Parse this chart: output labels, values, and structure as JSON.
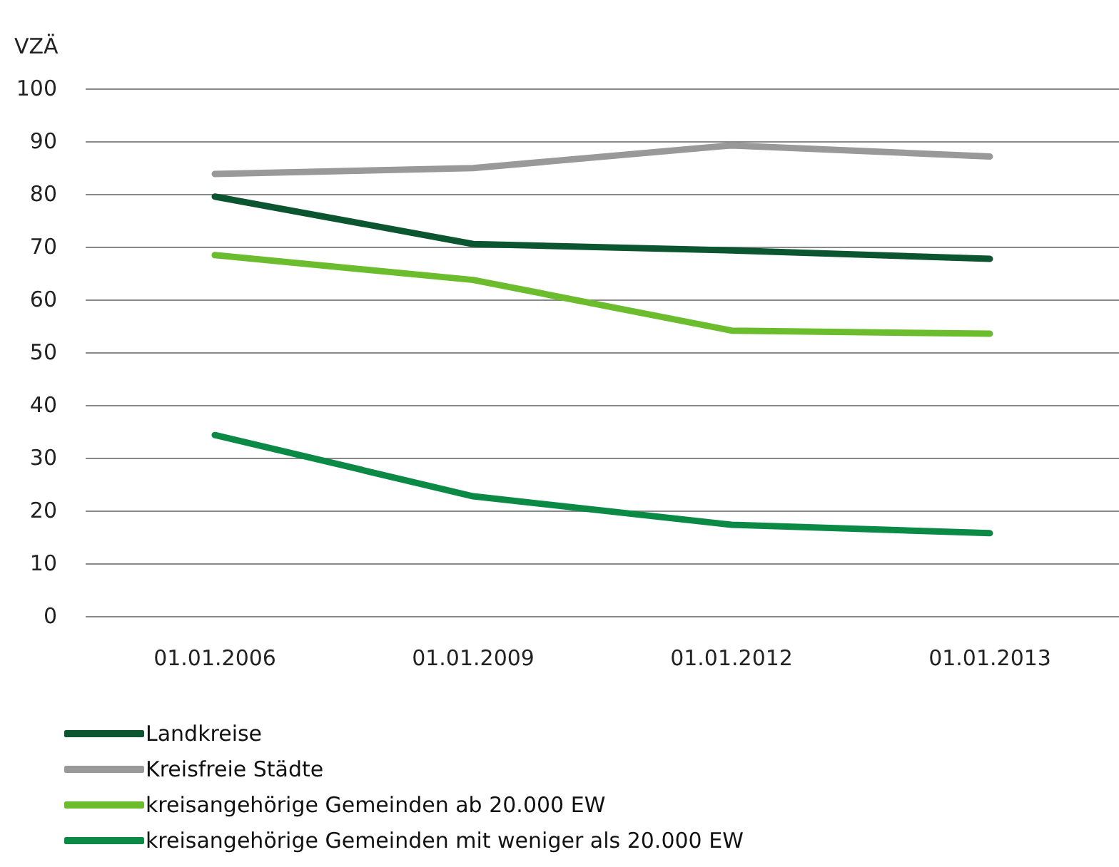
{
  "chart_data": {
    "type": "line",
    "ylabel": "VZÄ",
    "categories": [
      "01.01.2006",
      "01.01.2009",
      "01.01.2012",
      "01.01.2013"
    ],
    "series": [
      {
        "name": "Landkreise",
        "color": "#0b5530",
        "values": [
          79.5,
          70.5,
          69.3,
          67.7
        ]
      },
      {
        "name": "Kreisfreie Städte",
        "color": "#999999",
        "values": [
          83.8,
          84.9,
          89.2,
          87.1
        ]
      },
      {
        "name": "kreisangehörige Gemeinden ab 20.000 EW",
        "color": "#6cbd2e",
        "values": [
          68.4,
          63.7,
          54.1,
          53.5
        ]
      },
      {
        "name": "kreisangehörige Gemeinden mit weniger als 20.000 EW",
        "color": "#0a8a45",
        "values": [
          34.3,
          22.7,
          17.3,
          15.7
        ]
      }
    ],
    "ylim": [
      0,
      100
    ],
    "yticks": [
      0,
      10,
      20,
      30,
      40,
      50,
      60,
      70,
      80,
      90,
      100
    ],
    "grid": "y",
    "legend": "bottom",
    "marker": "none",
    "line_style": "solid"
  }
}
